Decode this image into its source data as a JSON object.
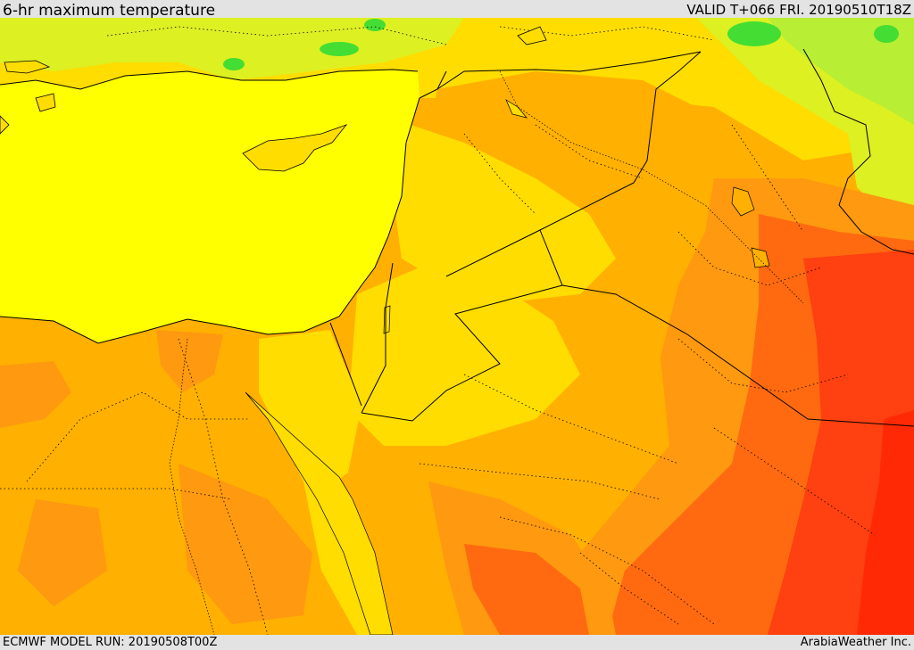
{
  "header": {
    "title": "6-hr maximum temperature",
    "valid": "VALID T+066 FRI. 20190510T18Z"
  },
  "footer": {
    "model_run": "ECMWF MODEL RUN: 20190508T00Z",
    "credit": "ArabiaWeather Inc."
  },
  "map": {
    "region": "Eastern Mediterranean, Levant, Egypt, Iraq, northern Saudi Arabia",
    "colors": {
      "sea": "#ffff00",
      "cool_green": "#44dd33",
      "light_green": "#b8ee33",
      "yellow_green": "#ddf022",
      "warm_yellow": "#ffdd00",
      "orange_light": "#ffb000",
      "orange": "#ff9910",
      "orange_dark": "#ff6a10",
      "red_orange": "#ff4010",
      "hot_red": "#ff2a05",
      "boundary": "#000000"
    }
  }
}
